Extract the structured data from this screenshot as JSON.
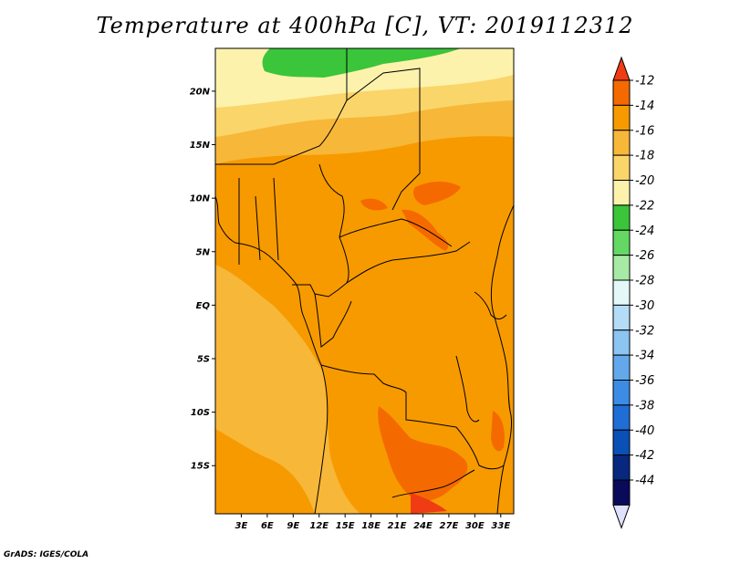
{
  "title": "Temperature at 400hPa [C], VT: 2019112312",
  "credit": "GrADS: IGES/COLA",
  "map": {
    "lat_labels": [
      "20N",
      "15N",
      "10N",
      "5N",
      "EQ",
      "5S",
      "10S",
      "15S"
    ],
    "lon_labels": [
      "3E",
      "6E",
      "9E",
      "12E",
      "15E",
      "18E",
      "21E",
      "24E",
      "27E",
      "30E",
      "33E"
    ],
    "lat_range": [
      -19.5,
      24
    ],
    "lon_range": [
      0,
      34.5
    ]
  },
  "colorbar": {
    "labels": [
      "-12",
      "-14",
      "-16",
      "-18",
      "-20",
      "-22",
      "-24",
      "-26",
      "-28",
      "-30",
      "-32",
      "-34",
      "-36",
      "-38",
      "-40",
      "-42",
      "-44"
    ],
    "colors": [
      "#f03c14",
      "#f56a00",
      "#f79a00",
      "#f7b738",
      "#fad56a",
      "#fdf2ac",
      "#3ac53a",
      "#63d863",
      "#a6eaa6",
      "#e4f8f8",
      "#b4dcf6",
      "#8cc4f2",
      "#64a8ec",
      "#3c8ce6",
      "#1e6ed6",
      "#0a50b6",
      "#082880",
      "#0a0a5a",
      "#e0e0ff"
    ],
    "top_arrow_color": "#f03c14",
    "bottom_arrow_color": "#e0e0ff"
  }
}
